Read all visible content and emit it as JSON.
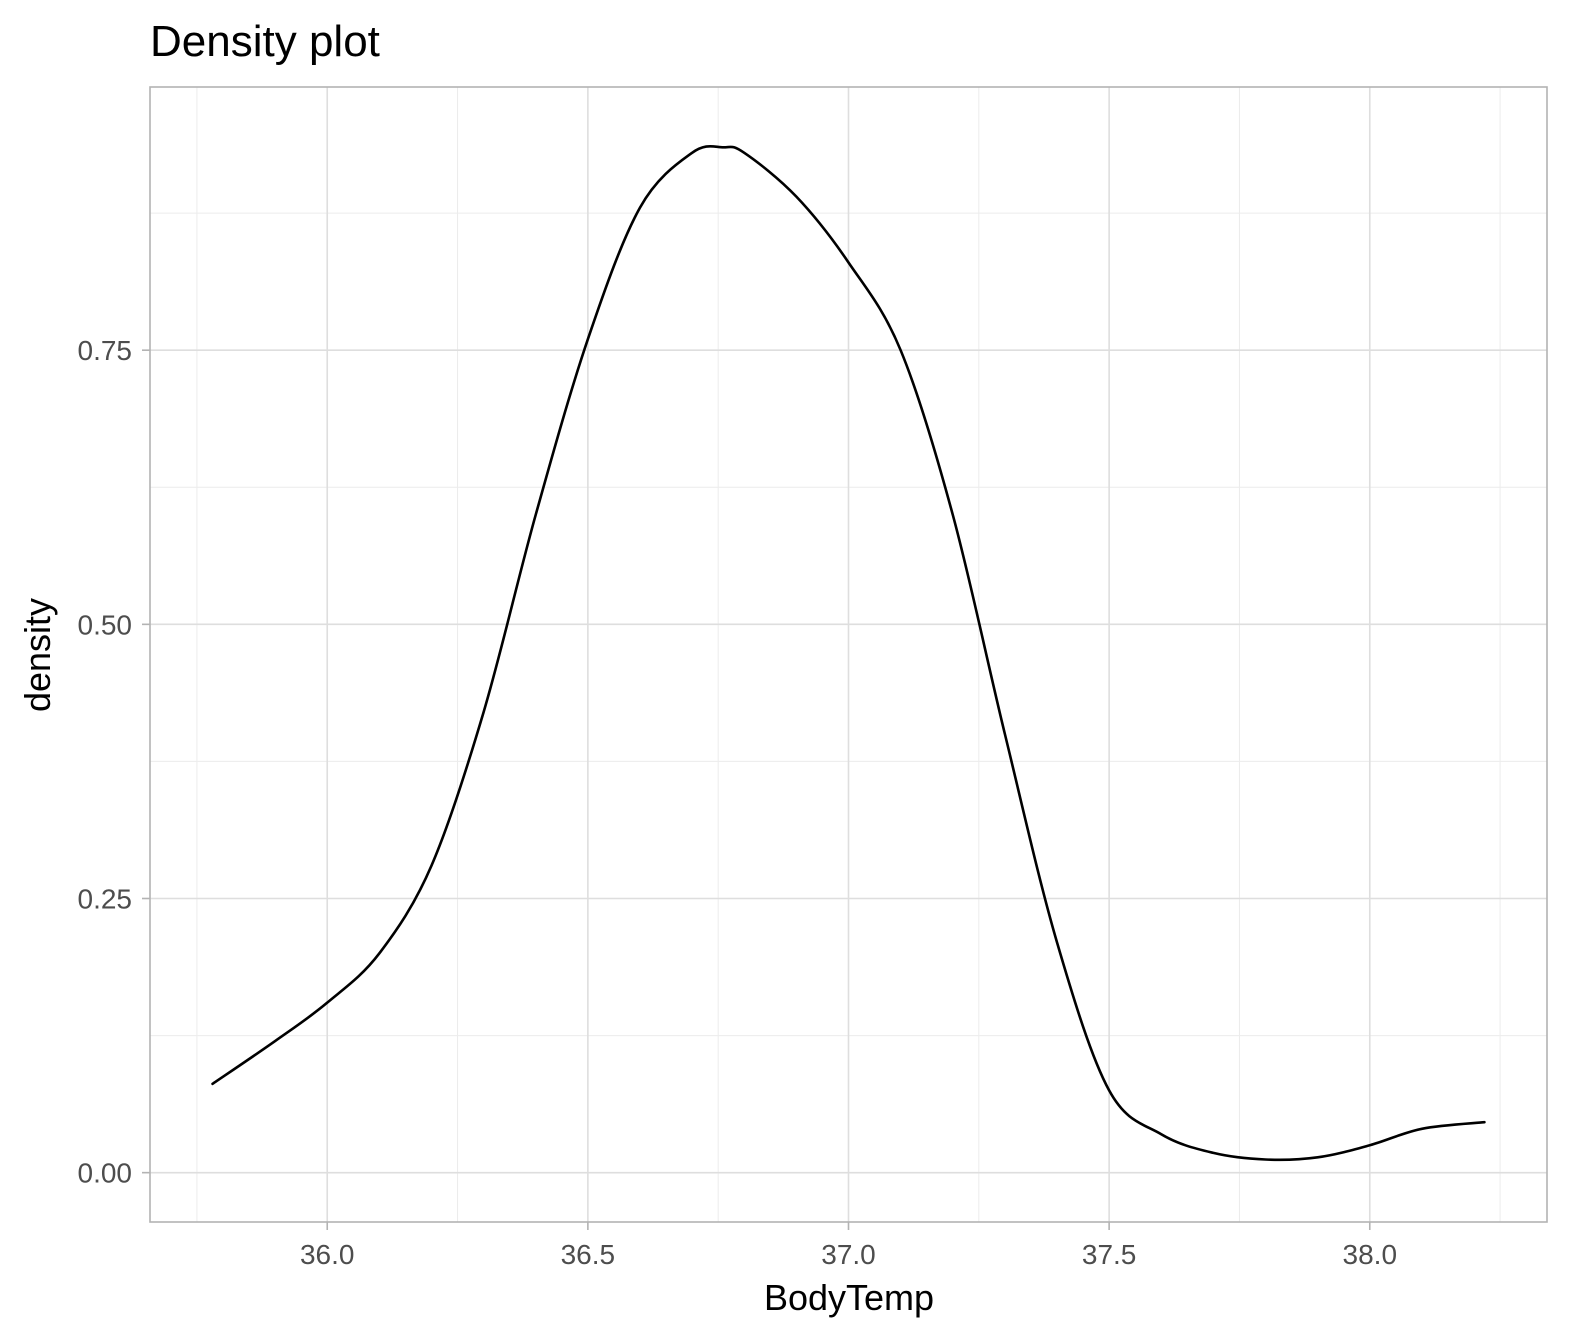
{
  "chart_data": {
    "type": "line",
    "title": "Density plot",
    "xlabel": "BodyTemp",
    "ylabel": "density",
    "xlim": [
      35.66,
      38.34
    ],
    "ylim": [
      -0.045,
      0.99
    ],
    "x_ticks": [
      36.0,
      36.5,
      37.0,
      37.5,
      38.0
    ],
    "x_tick_labels": [
      "36.0",
      "36.5",
      "37.0",
      "37.5",
      "38.0"
    ],
    "y_ticks": [
      0.0,
      0.25,
      0.5,
      0.75
    ],
    "y_tick_labels": [
      "0.00",
      "0.25",
      "0.50",
      "0.75"
    ],
    "grid": true,
    "legend": "none",
    "line_color": "#000000",
    "series": [
      {
        "x": [
          35.78,
          35.9,
          36.0,
          36.1,
          36.2,
          36.3,
          36.4,
          36.5,
          36.6,
          36.7,
          36.76,
          36.8,
          36.9,
          37.0,
          37.1,
          37.2,
          37.3,
          37.4,
          37.5,
          37.6,
          37.7,
          37.8,
          37.9,
          38.0,
          38.1,
          38.22
        ],
        "y": [
          0.081,
          0.12,
          0.155,
          0.2,
          0.28,
          0.42,
          0.6,
          0.76,
          0.88,
          0.93,
          0.935,
          0.93,
          0.89,
          0.83,
          0.75,
          0.6,
          0.4,
          0.21,
          0.075,
          0.035,
          0.018,
          0.012,
          0.014,
          0.025,
          0.04,
          0.046
        ]
      }
    ]
  }
}
